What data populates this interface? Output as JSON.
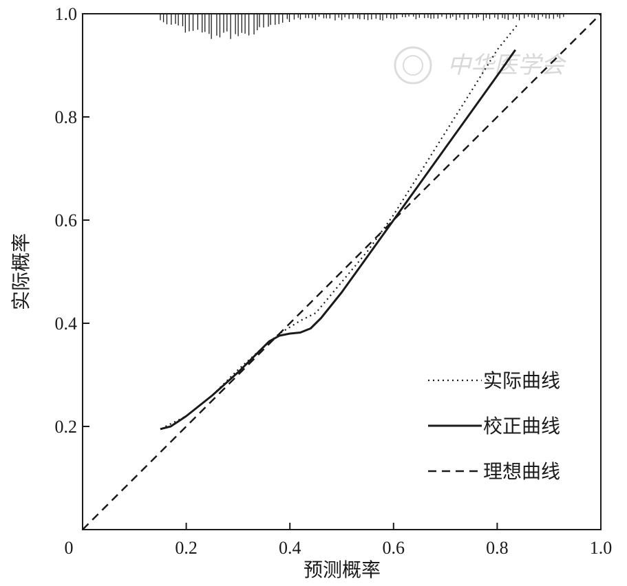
{
  "chart_data": {
    "type": "line",
    "xlabel": "预测概率",
    "ylabel": "实际概率",
    "xlim": [
      0,
      1.0
    ],
    "ylim": [
      0,
      1.0
    ],
    "x_ticks": [
      "0",
      "0.2",
      "0.4",
      "0.6",
      "0.8",
      "1.0"
    ],
    "y_ticks": [
      "0.2",
      "0.4",
      "0.6",
      "0.8",
      "1.0"
    ],
    "grid": false,
    "legend_position": "bottom-right",
    "series": [
      {
        "name": "实际曲线",
        "style": "dotted",
        "x": [
          0.16,
          0.2,
          0.25,
          0.3,
          0.35,
          0.38,
          0.42,
          0.45,
          0.5,
          0.55,
          0.6,
          0.65,
          0.7,
          0.75,
          0.8,
          0.84
        ],
        "y": [
          0.2,
          0.22,
          0.26,
          0.31,
          0.355,
          0.38,
          0.405,
          0.42,
          0.48,
          0.54,
          0.61,
          0.69,
          0.77,
          0.85,
          0.93,
          0.98
        ]
      },
      {
        "name": "校正曲线",
        "style": "solid",
        "x": [
          0.15,
          0.17,
          0.2,
          0.25,
          0.3,
          0.33,
          0.36,
          0.38,
          0.4,
          0.42,
          0.44,
          0.46,
          0.5,
          0.55,
          0.6,
          0.65,
          0.7,
          0.75,
          0.8,
          0.835
        ],
        "y": [
          0.195,
          0.2,
          0.22,
          0.26,
          0.305,
          0.335,
          0.365,
          0.376,
          0.38,
          0.382,
          0.39,
          0.41,
          0.46,
          0.53,
          0.6,
          0.67,
          0.74,
          0.81,
          0.88,
          0.93
        ]
      },
      {
        "name": "理想曲线",
        "style": "dashed",
        "x": [
          0,
          1.0
        ],
        "y": [
          0,
          1.0
        ]
      }
    ],
    "rug_top": {
      "x_range": [
        0.15,
        0.93
      ],
      "note_hidden": true
    }
  },
  "watermark": {
    "text": "中华医学会"
  },
  "colors": {
    "line": "#1a1a1a",
    "background": "#ffffff",
    "watermark": "#d8d8d8"
  }
}
